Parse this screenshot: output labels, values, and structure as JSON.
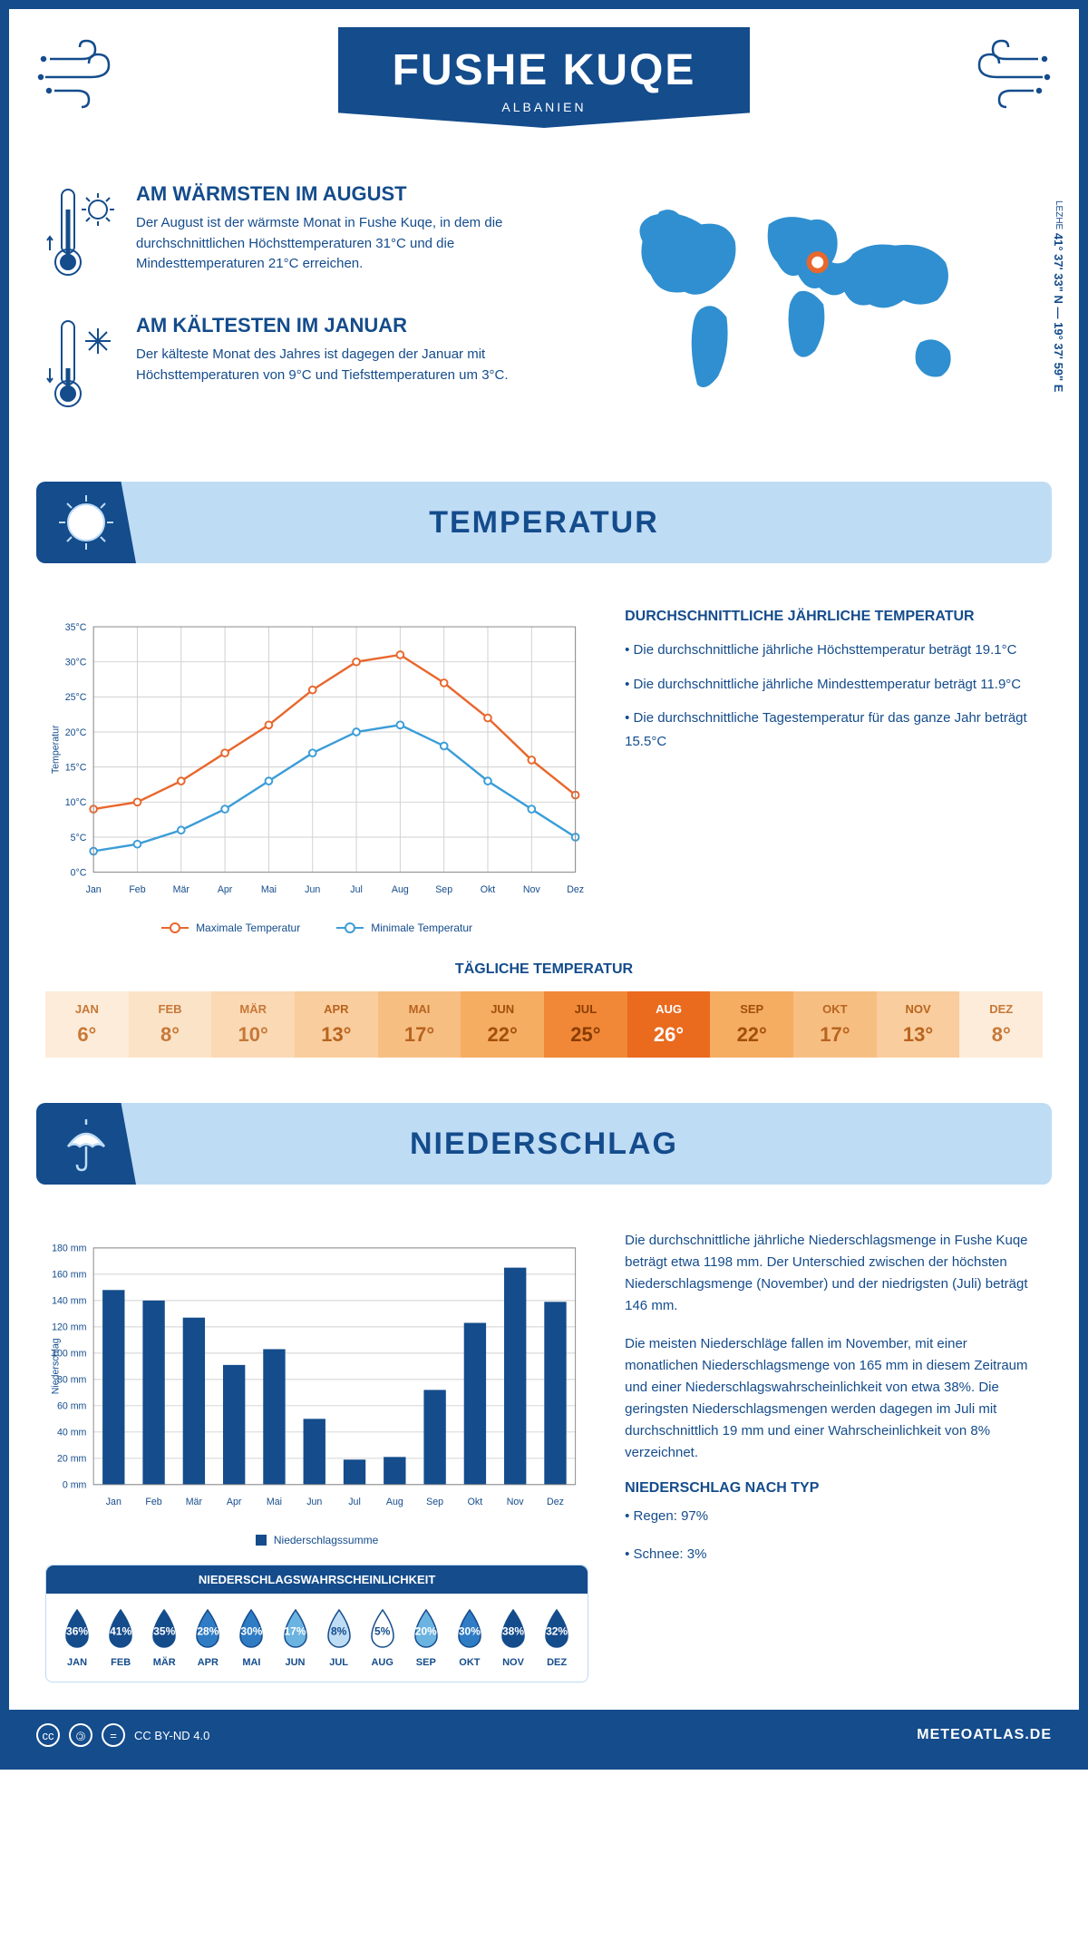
{
  "header": {
    "title": "FUSHE KUQE",
    "subtitle": "ALBANIEN"
  },
  "coords": {
    "main": "41° 37' 33\" N — 19° 37' 59\" E",
    "sub": "LEZHE"
  },
  "warmest": {
    "title": "AM WÄRMSTEN IM AUGUST",
    "text": "Der August ist der wärmste Monat in Fushe Kuqe, in dem die durchschnittlichen Höchsttemperaturen 31°C und die Mindesttemperaturen 21°C erreichen."
  },
  "coldest": {
    "title": "AM KÄLTESTEN IM JANUAR",
    "text": "Der kälteste Monat des Jahres ist dagegen der Januar mit Höchsttemperaturen von 9°C und Tiefsttemperaturen um 3°C."
  },
  "temp_section": {
    "title": "TEMPERATUR",
    "info_title": "DURCHSCHNITTLICHE JÄHRLICHE TEMPERATUR",
    "bullets": [
      "• Die durchschnittliche jährliche Höchsttemperatur beträgt 19.1°C",
      "• Die durchschnittliche jährliche Mindesttemperatur beträgt 11.9°C",
      "• Die durchschnittliche Tagestemperatur für das ganze Jahr beträgt 15.5°C"
    ],
    "chart": {
      "months": [
        "Jan",
        "Feb",
        "Mär",
        "Apr",
        "Mai",
        "Jun",
        "Jul",
        "Aug",
        "Sep",
        "Okt",
        "Nov",
        "Dez"
      ],
      "max": [
        9,
        10,
        13,
        17,
        21,
        26,
        30,
        31,
        27,
        22,
        16,
        11
      ],
      "min": [
        3,
        4,
        6,
        9,
        13,
        17,
        20,
        21,
        18,
        13,
        9,
        5
      ],
      "max_color": "#e8672c",
      "min_color": "#3b9dd8",
      "ylabel": "Temperatur",
      "ylim": [
        0,
        35
      ],
      "ytick": 5,
      "legend_max": "Maximale Temperatur",
      "legend_min": "Minimale Temperatur",
      "grid_color": "#d0d0d0"
    },
    "daily_title": "TÄGLICHE TEMPERATUR",
    "daily": {
      "months": [
        "JAN",
        "FEB",
        "MÄR",
        "APR",
        "MAI",
        "JUN",
        "JUL",
        "AUG",
        "SEP",
        "OKT",
        "NOV",
        "DEZ"
      ],
      "values": [
        "6°",
        "8°",
        "10°",
        "13°",
        "17°",
        "22°",
        "25°",
        "26°",
        "22°",
        "17°",
        "13°",
        "8°"
      ],
      "bg_colors": [
        "#fcecd9",
        "#fbe3c7",
        "#fad9b4",
        "#f9cd9d",
        "#f7be82",
        "#f5ad62",
        "#f08838",
        "#ea6a1e",
        "#f5ad62",
        "#f7be82",
        "#f9cd9d",
        "#fcecd9"
      ],
      "text_colors": [
        "#c77838",
        "#c77838",
        "#c77838",
        "#b8641f",
        "#b8641f",
        "#a34f0a",
        "#8a3c00",
        "#ffffff",
        "#a34f0a",
        "#b8641f",
        "#b8641f",
        "#c77838"
      ]
    }
  },
  "precip_section": {
    "title": "NIEDERSCHLAG",
    "chart": {
      "months": [
        "Jan",
        "Feb",
        "Mär",
        "Apr",
        "Mai",
        "Jun",
        "Jul",
        "Aug",
        "Sep",
        "Okt",
        "Nov",
        "Dez"
      ],
      "values": [
        148,
        140,
        127,
        91,
        103,
        50,
        19,
        21,
        72,
        123,
        165,
        139
      ],
      "bar_color": "#144c8c",
      "ylabel": "Niederschlag",
      "ylim": [
        0,
        180
      ],
      "ytick": 20,
      "legend": "Niederschlagssumme",
      "grid_color": "#d0d0d0"
    },
    "text1": "Die durchschnittliche jährliche Niederschlagsmenge in Fushe Kuqe beträgt etwa 1198 mm. Der Unterschied zwischen der höchsten Niederschlagsmenge (November) und der niedrigsten (Juli) beträgt 146 mm.",
    "text2": "Die meisten Niederschläge fallen im November, mit einer monatlichen Niederschlagsmenge von 165 mm in diesem Zeitraum und einer Niederschlagswahrscheinlichkeit von etwa 38%. Die geringsten Niederschlagsmengen werden dagegen im Juli mit durchschnittlich 19 mm und einer Wahrscheinlichkeit von 8% verzeichnet.",
    "type_title": "NIEDERSCHLAG NACH TYP",
    "types": [
      "• Regen: 97%",
      "• Schnee: 3%"
    ],
    "prob": {
      "title": "NIEDERSCHLAGSWAHRSCHEINLICHKEIT",
      "months": [
        "JAN",
        "FEB",
        "MÄR",
        "APR",
        "MAI",
        "JUN",
        "JUL",
        "AUG",
        "SEP",
        "OKT",
        "NOV",
        "DEZ"
      ],
      "values": [
        "36%",
        "41%",
        "35%",
        "28%",
        "30%",
        "17%",
        "8%",
        "5%",
        "20%",
        "30%",
        "38%",
        "32%"
      ],
      "colors": [
        "#144c8c",
        "#144c8c",
        "#144c8c",
        "#2f7cc4",
        "#2f7cc4",
        "#6bb3e0",
        "#bfdcf5",
        "#ffffff",
        "#6bb3e0",
        "#2f7cc4",
        "#144c8c",
        "#144c8c"
      ],
      "text_colors": [
        "#fff",
        "#fff",
        "#fff",
        "#fff",
        "#fff",
        "#fff",
        "#144c8c",
        "#144c8c",
        "#fff",
        "#fff",
        "#fff",
        "#fff"
      ],
      "stroke": "#144c8c"
    }
  },
  "footer": {
    "license": "CC BY-ND 4.0",
    "site": "METEOATLAS.DE"
  },
  "colors": {
    "primary": "#144c8c",
    "light_blue": "#bfdcf5",
    "map_blue": "#2f8fd0",
    "marker": "#e8672c"
  }
}
